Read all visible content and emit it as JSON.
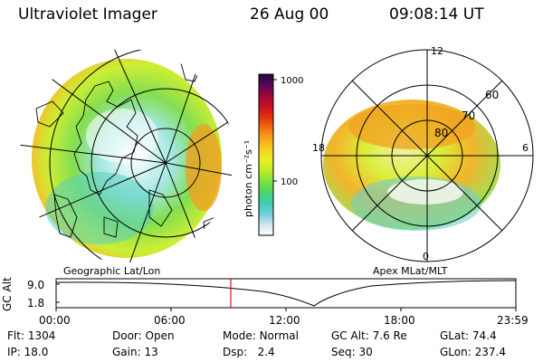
{
  "header": {
    "instrument": "Ultraviolet Imager",
    "date": "26 Aug 00",
    "time": "09:08:14 UT"
  },
  "left_panel": {
    "label": "Geographic Lat/Lon"
  },
  "right_panel": {
    "label": "Apex MLat/MLT",
    "lat_labels": [
      "80",
      "70",
      "60"
    ],
    "mlt_labels": {
      "top": "12",
      "right": "6",
      "bottom": "0",
      "left": "18"
    }
  },
  "colorbar": {
    "unit_label": "photon cm⁻²s⁻¹",
    "tick_labels": [
      "1000",
      "100"
    ],
    "colors": [
      "#ffffff",
      "#cfe6ea",
      "#6fcfe0",
      "#3ccdb0",
      "#4cd66a",
      "#7ee23c",
      "#b8ec2a",
      "#e8f020",
      "#f8d020",
      "#f8a418",
      "#f07010",
      "#e43010",
      "#c81020",
      "#9a0838",
      "#5a0658",
      "#1a0a40"
    ]
  },
  "timeline": {
    "y_label": "GC Alt",
    "y_ticks": [
      "9.0",
      "1.8"
    ],
    "x_ticks": [
      "00:00",
      "06:00",
      "12:00",
      "18:00",
      "23:59"
    ],
    "marker_time": "09:08"
  },
  "status": {
    "col1": [
      {
        "label": "Flt:",
        "value": "1304"
      },
      {
        "label": "IP:",
        "value": "18.0"
      }
    ],
    "col2": [
      {
        "label": "Door:",
        "value": "Open"
      },
      {
        "label": "Gain:",
        "value": "13"
      }
    ],
    "col3": [
      {
        "label": "Mode:",
        "value": "Normal"
      },
      {
        "label": "Dsp:",
        "value": "2.4"
      }
    ],
    "col4": [
      {
        "label": "GC Alt:",
        "value": "7.6 Re"
      },
      {
        "label": "Seq:",
        "value": "30"
      }
    ],
    "col5": [
      {
        "label": "GLat:",
        "value": "74.4"
      },
      {
        "label": "GLon:",
        "value": "237.4"
      }
    ]
  }
}
